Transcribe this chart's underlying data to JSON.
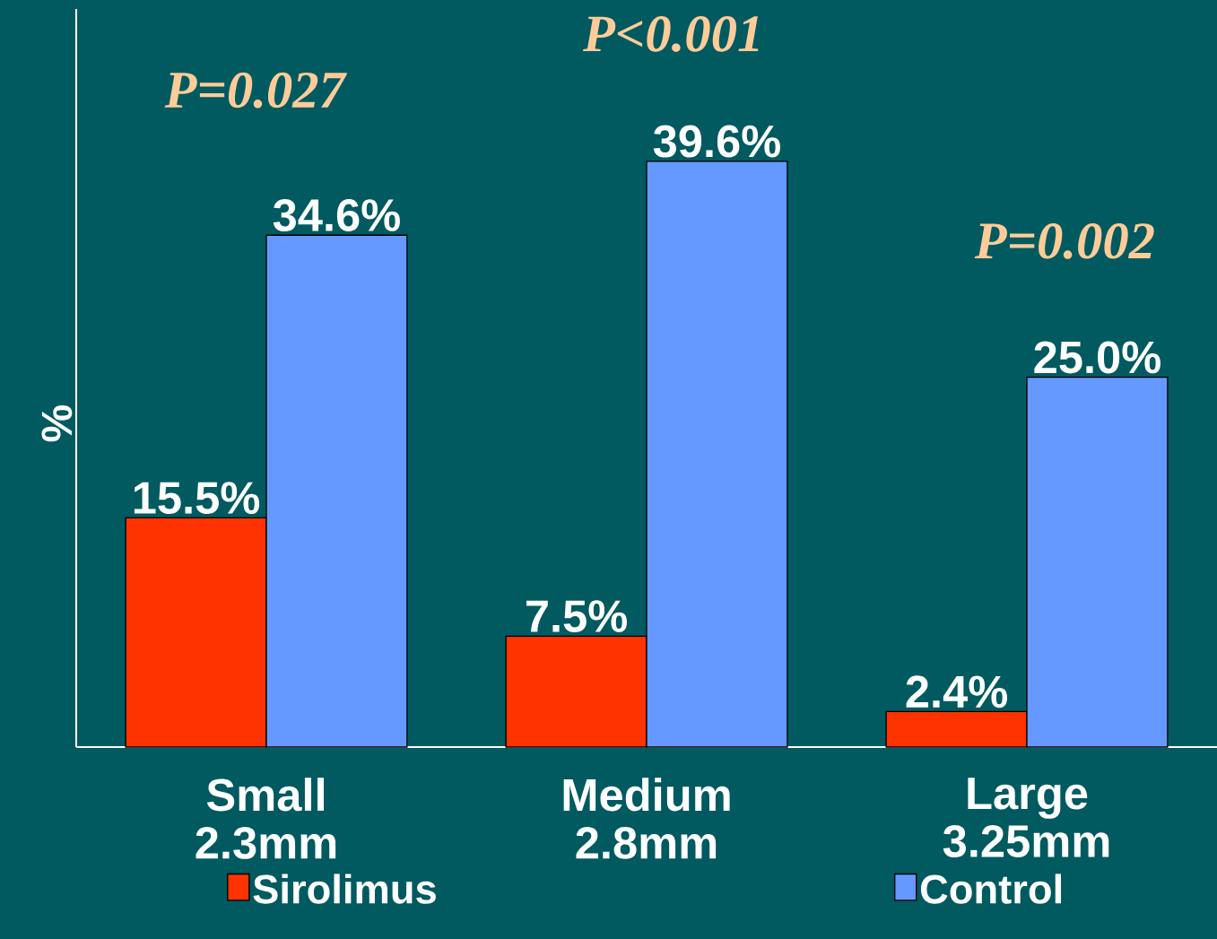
{
  "chart_data": {
    "type": "bar",
    "ylabel": "%",
    "categories": [
      "Small 2.3mm",
      "Medium 2.8mm",
      "Large 3.25mm"
    ],
    "series": [
      {
        "name": "Sirolimus",
        "color": "#ff3300",
        "values": [
          15.5,
          7.5,
          2.4
        ],
        "value_labels": [
          "15.5%",
          "7.5%",
          "2.4%"
        ]
      },
      {
        "name": "Control",
        "color": "#6699ff",
        "values": [
          34.6,
          39.6,
          25.0
        ],
        "value_labels": [
          "34.6%",
          "39.6%",
          "25.0%"
        ]
      }
    ],
    "annotations": [
      "P=0.027",
      "P<0.001",
      "P=0.002"
    ],
    "legend": "bottom"
  }
}
